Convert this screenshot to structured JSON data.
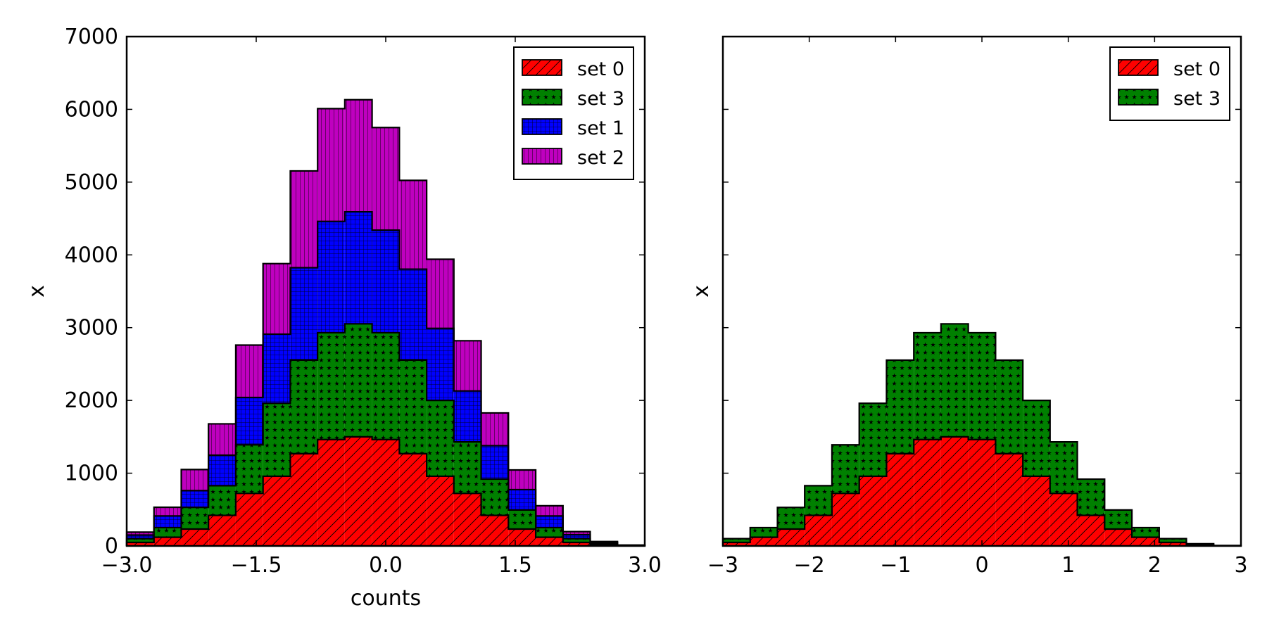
{
  "chart_data": [
    {
      "type": "histogram-stacked-step",
      "xlabel": "counts",
      "ylabel": "x",
      "xlim": [
        -3.0,
        3.0
      ],
      "ylim": [
        0,
        7000
      ],
      "xticks": [
        -3.0,
        -1.5,
        0.0,
        1.5,
        3.0
      ],
      "xtick_labels": [
        "−3.0",
        "−1.5",
        "0.0",
        "1.5",
        "3.0"
      ],
      "yticks": [
        0,
        1000,
        2000,
        3000,
        4000,
        5000,
        6000,
        7000
      ],
      "ytick_labels": [
        "0",
        "1000",
        "2000",
        "3000",
        "4000",
        "5000",
        "6000",
        "7000"
      ],
      "show_ytick_labels": true,
      "grid": false,
      "legend_position": "top-right",
      "bin_edges": [
        -3.0,
        -2.684,
        -2.368,
        -2.053,
        -1.737,
        -1.421,
        -1.105,
        -0.789,
        -0.474,
        -0.158,
        0.158,
        0.474,
        0.789,
        1.105,
        1.421,
        1.737,
        2.053,
        2.368,
        2.684,
        3.0
      ],
      "series": [
        {
          "name": "set 0",
          "color": "#ff0000",
          "hatch": "diagonal",
          "values": [
            48,
            120,
            232,
            420,
            722,
            958,
            1268,
            1462,
            1500,
            1462,
            1268,
            958,
            722,
            420,
            232,
            120,
            48,
            14,
            3
          ]
        },
        {
          "name": "set 3",
          "color": "#008000",
          "hatch": "stars",
          "values": [
            52,
            132,
            298,
            408,
            668,
            1002,
            1286,
            1468,
            1552,
            1468,
            1286,
            1042,
            708,
            498,
            262,
            132,
            52,
            16,
            3
          ]
        },
        {
          "name": "set 1",
          "color": "#0000ff",
          "hatch": "grid",
          "values": [
            50,
            160,
            230,
            420,
            650,
            950,
            1270,
            1530,
            1540,
            1410,
            1250,
            990,
            700,
            460,
            280,
            160,
            55,
            17,
            3
          ]
        },
        {
          "name": "set 2",
          "color": "#bf00bf",
          "hatch": "vertical",
          "values": [
            40,
            120,
            290,
            430,
            720,
            970,
            1330,
            1550,
            1540,
            1410,
            1220,
            950,
            690,
            450,
            270,
            140,
            42,
            14,
            3
          ]
        }
      ]
    },
    {
      "type": "histogram-stacked-step",
      "xlabel": "",
      "ylabel": "x",
      "xlim": [
        -3,
        3
      ],
      "ylim": [
        0,
        7000
      ],
      "xticks": [
        -3,
        -2,
        -1,
        0,
        1,
        2,
        3
      ],
      "xtick_labels": [
        "−3",
        "−2",
        "−1",
        "0",
        "1",
        "2",
        "3"
      ],
      "yticks": [
        0,
        1000,
        2000,
        3000,
        4000,
        5000,
        6000,
        7000
      ],
      "ytick_labels": [
        "",
        "",
        "",
        "",
        "",
        "",
        "",
        ""
      ],
      "show_ytick_labels": false,
      "grid": false,
      "legend_position": "top-right",
      "bin_edges": [
        -3.0,
        -2.684,
        -2.368,
        -2.053,
        -1.737,
        -1.421,
        -1.105,
        -0.789,
        -0.474,
        -0.158,
        0.158,
        0.474,
        0.789,
        1.105,
        1.421,
        1.737,
        2.053,
        2.368,
        2.684,
        3.0
      ],
      "series": [
        {
          "name": "set 0",
          "color": "#ff0000",
          "hatch": "diagonal",
          "values": [
            48,
            120,
            232,
            420,
            722,
            958,
            1268,
            1462,
            1500,
            1462,
            1268,
            958,
            722,
            420,
            232,
            120,
            48,
            14,
            3
          ]
        },
        {
          "name": "set 3",
          "color": "#008000",
          "hatch": "stars",
          "values": [
            52,
            132,
            298,
            408,
            668,
            1002,
            1286,
            1468,
            1552,
            1468,
            1286,
            1042,
            708,
            498,
            262,
            132,
            52,
            16,
            3
          ]
        }
      ]
    }
  ]
}
